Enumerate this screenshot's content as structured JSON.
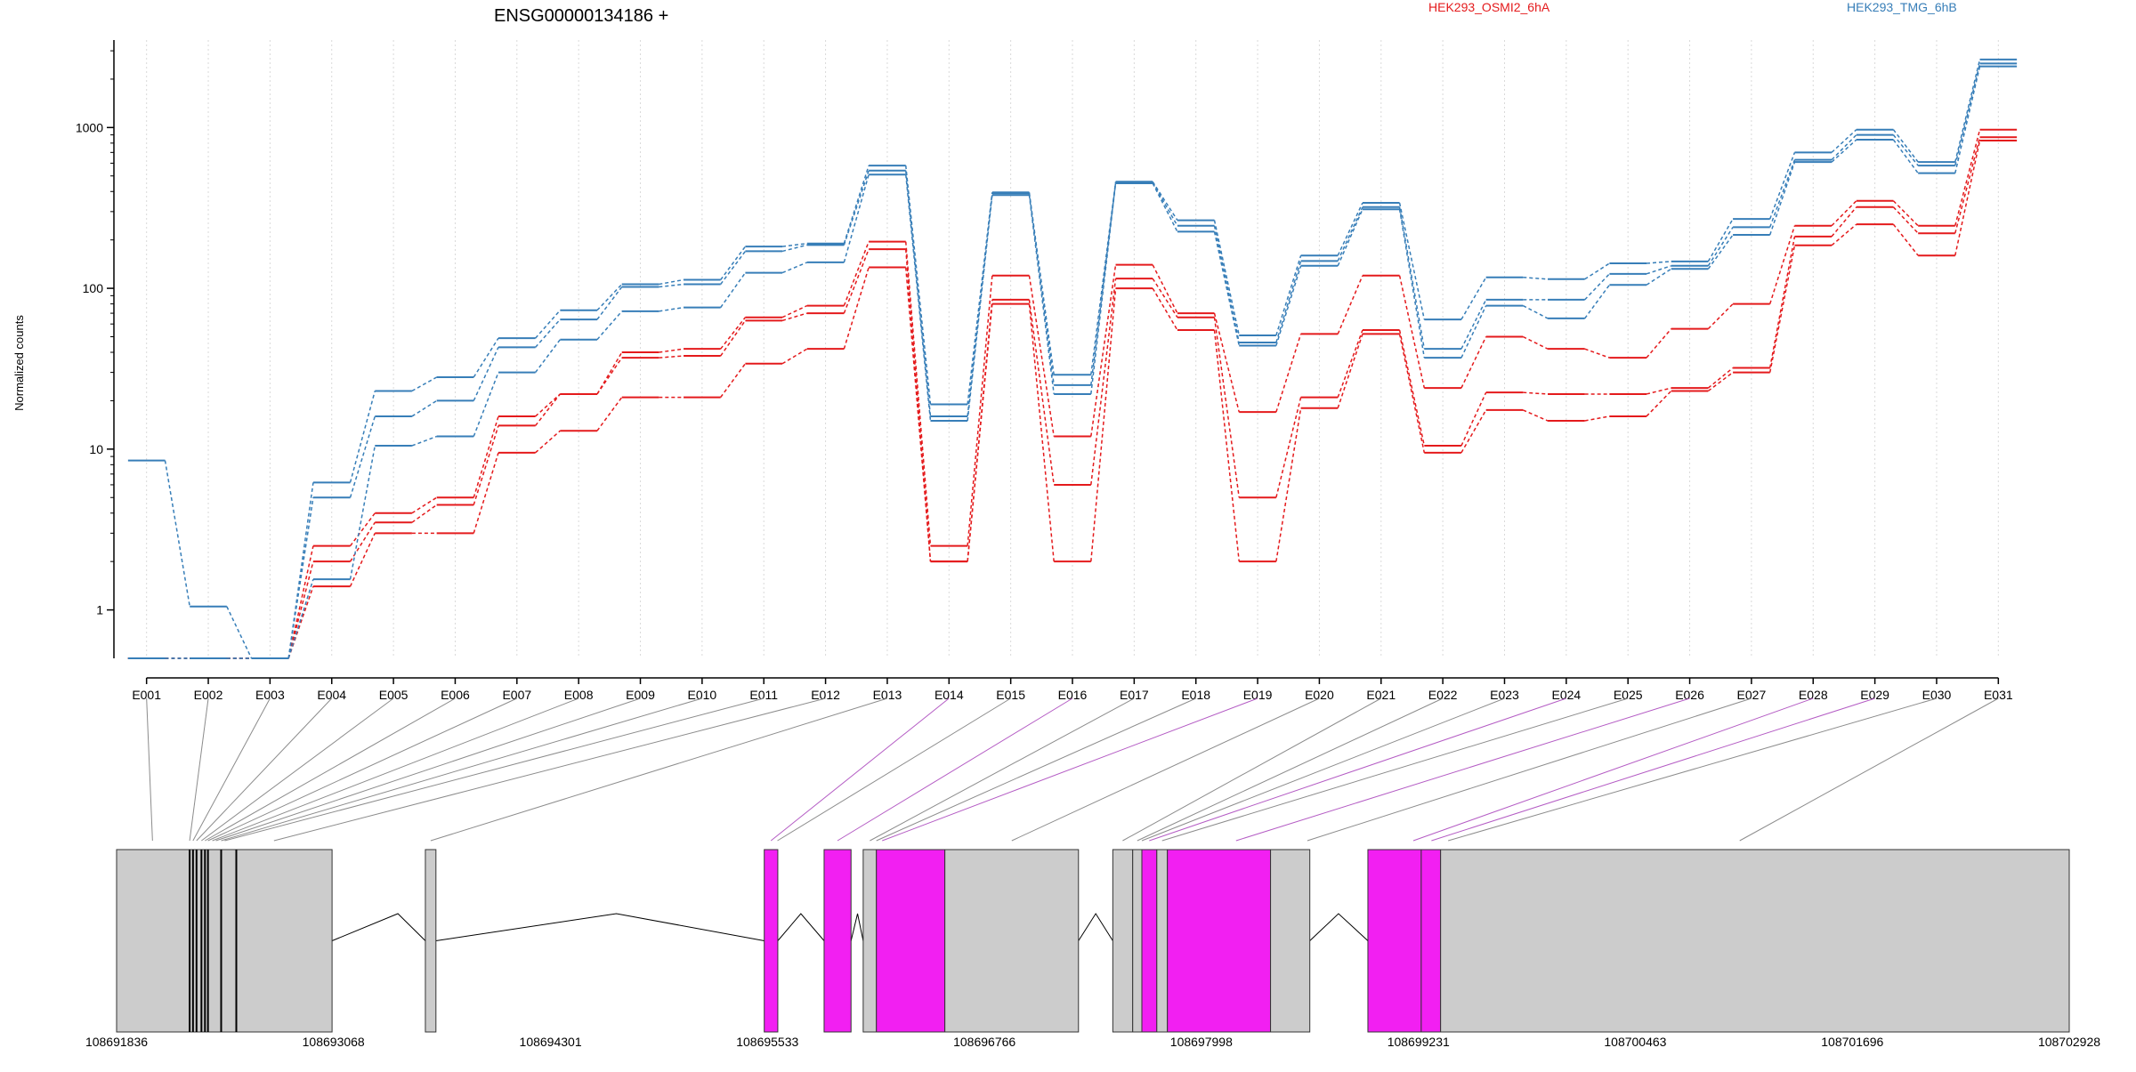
{
  "colors": {
    "cond_a": "#e41a1c",
    "cond_b": "#377eb8",
    "axis": "#000000",
    "gridline": "#d9d9d9",
    "exon_default": "#cccccc",
    "exon_highlight": "#f21ff2",
    "mapping_default": "#8c8c8c",
    "mapping_highlight": "#b45cc4",
    "intron": "#000000"
  },
  "chart_data": {
    "type": "line",
    "title": "ENSG00000134186 +",
    "ylabel": "Normalized counts",
    "xlabel": "",
    "y_scale": "log",
    "y_ticks": [
      1,
      10,
      100,
      1000
    ],
    "y_tick_labels": [
      "1",
      "10",
      "100",
      "1000"
    ],
    "ylim": [
      0.5,
      3500
    ],
    "grid": true,
    "legend": [
      {
        "name": "HEK293_OSMI2_6hA",
        "color": "#e41a1c"
      },
      {
        "name": "HEK293_TMG_6hB",
        "color": "#377eb8"
      }
    ],
    "categories": [
      "E001",
      "E002",
      "E003",
      "E004",
      "E005",
      "E006",
      "E007",
      "E008",
      "E009",
      "E010",
      "E011",
      "E012",
      "E013",
      "E014",
      "E015",
      "E016",
      "E017",
      "E018",
      "E019",
      "E020",
      "E021",
      "E022",
      "E023",
      "E024",
      "E025",
      "E026",
      "E027",
      "E028",
      "E029",
      "E030",
      "E031"
    ],
    "series": [
      {
        "condition": "HEK293_OSMI2_6hA",
        "color": "#e41a1c",
        "values": [
          0.5,
          0.5,
          0.5,
          1.4,
          3,
          3,
          9.5,
          13,
          21,
          21,
          34,
          42,
          135,
          2,
          80,
          2,
          100,
          55,
          2,
          18,
          52,
          9.5,
          17.5,
          15,
          16,
          23,
          30,
          185,
          250,
          160,
          830
        ]
      },
      {
        "condition": "HEK293_OSMI2_6hA",
        "color": "#e41a1c",
        "values": [
          0.5,
          0.5,
          0.5,
          2,
          3.5,
          4.5,
          14,
          22,
          37,
          38,
          63,
          70,
          175,
          2,
          85,
          6,
          115,
          66,
          5,
          21,
          55,
          10.5,
          22.5,
          22,
          22,
          24,
          32,
          210,
          320,
          220,
          870
        ]
      },
      {
        "condition": "HEK293_OSMI2_6hA",
        "color": "#e41a1c",
        "values": [
          0.5,
          0.5,
          0.5,
          2.5,
          4,
          5,
          16,
          22,
          40,
          42,
          66,
          78,
          195,
          2.5,
          120,
          12,
          140,
          70,
          17,
          52,
          120,
          24,
          50,
          42,
          37,
          56,
          80,
          245,
          350,
          245,
          970
        ]
      },
      {
        "condition": "HEK293_TMG_6hB",
        "color": "#377eb8",
        "values": [
          8.5,
          1.05,
          0.5,
          1.55,
          10.5,
          12,
          30,
          48,
          72,
          76,
          125,
          145,
          510,
          15,
          380,
          22,
          450,
          225,
          44,
          138,
          310,
          37,
          78,
          65,
          105,
          132,
          215,
          610,
          840,
          520,
          2400
        ]
      },
      {
        "condition": "HEK293_TMG_6hB",
        "color": "#377eb8",
        "values": [
          0.5,
          0.5,
          0.5,
          5,
          16,
          20,
          43,
          64,
          102,
          106,
          170,
          186,
          540,
          16,
          390,
          25,
          455,
          245,
          46,
          148,
          320,
          42,
          85,
          85,
          123,
          138,
          240,
          630,
          900,
          580,
          2500
        ]
      },
      {
        "condition": "HEK293_TMG_6hB",
        "color": "#377eb8",
        "values": [
          0.5,
          0.5,
          0.5,
          6.2,
          23,
          28,
          49,
          73,
          106,
          113,
          182,
          190,
          580,
          19,
          395,
          29,
          460,
          265,
          51,
          160,
          340,
          64,
          117,
          114,
          143,
          147,
          270,
          700,
          970,
          610,
          2650
        ]
      }
    ]
  },
  "gene_model": {
    "genomic_range": [
      108691836,
      108702928
    ],
    "axis_ticks": [
      108691836,
      108693068,
      108694301,
      108695533,
      108696766,
      108697998,
      108699231,
      108700463,
      108701696,
      108702928
    ],
    "exons": [
      {
        "start": 108691836,
        "end": 108693060,
        "highlight": false
      },
      {
        "start": 108693590,
        "end": 108693650,
        "highlight": false
      },
      {
        "start": 108695515,
        "end": 108695592,
        "highlight": true
      },
      {
        "start": 108695855,
        "end": 108696008,
        "highlight": true
      },
      {
        "start": 108696077,
        "end": 108696152,
        "highlight": false
      },
      {
        "start": 108696152,
        "end": 108696541,
        "highlight": true
      },
      {
        "start": 108696541,
        "end": 108697300,
        "highlight": false
      },
      {
        "start": 108697495,
        "end": 108697608,
        "highlight": false
      },
      {
        "start": 108697608,
        "end": 108697660,
        "highlight": false
      },
      {
        "start": 108697660,
        "end": 108697745,
        "highlight": true
      },
      {
        "start": 108697745,
        "end": 108697805,
        "highlight": false
      },
      {
        "start": 108697805,
        "end": 108698391,
        "highlight": true
      },
      {
        "start": 108698391,
        "end": 108698614,
        "highlight": false
      },
      {
        "start": 108698944,
        "end": 108699247,
        "highlight": true
      },
      {
        "start": 108699247,
        "end": 108699357,
        "highlight": true
      },
      {
        "start": 108699357,
        "end": 108702928,
        "highlight": false
      }
    ],
    "exon_separators": [
      108692251,
      108692270,
      108692290,
      108692318,
      108692338,
      108692355,
      108692430,
      108692516
    ],
    "introns": [
      {
        "start": 108693060,
        "end": 108693590,
        "peak": 108693434
      },
      {
        "start": 108693650,
        "end": 108695515,
        "peak": 108694675
      },
      {
        "start": 108695592,
        "end": 108695855,
        "peak": 108695723
      },
      {
        "start": 108696008,
        "end": 108696077,
        "peak": 108696045
      },
      {
        "start": 108697300,
        "end": 108697495,
        "peak": 108697398
      },
      {
        "start": 108698614,
        "end": 108698944,
        "peak": 108698777
      }
    ],
    "bin_mapping": [
      {
        "bin": "E001",
        "pos": 108692040,
        "highlight": false
      },
      {
        "bin": "E002",
        "pos": 108692251,
        "highlight": false
      },
      {
        "bin": "E003",
        "pos": 108692270,
        "highlight": false
      },
      {
        "bin": "E004",
        "pos": 108692290,
        "highlight": false
      },
      {
        "bin": "E005",
        "pos": 108692318,
        "highlight": false
      },
      {
        "bin": "E006",
        "pos": 108692338,
        "highlight": false
      },
      {
        "bin": "E007",
        "pos": 108692355,
        "highlight": false
      },
      {
        "bin": "E008",
        "pos": 108692380,
        "highlight": false
      },
      {
        "bin": "E009",
        "pos": 108692400,
        "highlight": false
      },
      {
        "bin": "E010",
        "pos": 108692430,
        "highlight": false
      },
      {
        "bin": "E011",
        "pos": 108692450,
        "highlight": false
      },
      {
        "bin": "E012",
        "pos": 108692730,
        "highlight": false
      },
      {
        "bin": "E013",
        "pos": 108693620,
        "highlight": false
      },
      {
        "bin": "E014",
        "pos": 108695553,
        "highlight": true
      },
      {
        "bin": "E015",
        "pos": 108695590,
        "highlight": false
      },
      {
        "bin": "E016",
        "pos": 108695931,
        "highlight": true
      },
      {
        "bin": "E017",
        "pos": 108696115,
        "highlight": false
      },
      {
        "bin": "E018",
        "pos": 108696152,
        "highlight": false
      },
      {
        "bin": "E019",
        "pos": 108696185,
        "highlight": true
      },
      {
        "bin": "E020",
        "pos": 108696921,
        "highlight": false
      },
      {
        "bin": "E021",
        "pos": 108697551,
        "highlight": false
      },
      {
        "bin": "E022",
        "pos": 108697634,
        "highlight": false
      },
      {
        "bin": "E023",
        "pos": 108697660,
        "highlight": false
      },
      {
        "bin": "E024",
        "pos": 108697702,
        "highlight": true
      },
      {
        "bin": "E025",
        "pos": 108697775,
        "highlight": false
      },
      {
        "bin": "E026",
        "pos": 108698195,
        "highlight": true
      },
      {
        "bin": "E027",
        "pos": 108698600,
        "highlight": false
      },
      {
        "bin": "E028",
        "pos": 108699202,
        "highlight": true
      },
      {
        "bin": "E029",
        "pos": 108699305,
        "highlight": true
      },
      {
        "bin": "E030",
        "pos": 108699400,
        "highlight": false
      },
      {
        "bin": "E031",
        "pos": 108701056,
        "highlight": false
      }
    ]
  }
}
